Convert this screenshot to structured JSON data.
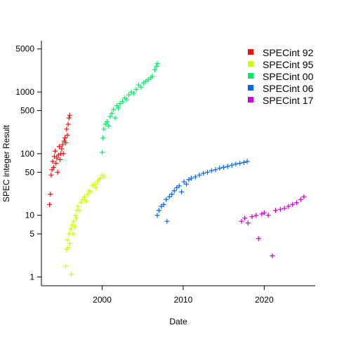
{
  "chart_data": {
    "type": "scatter",
    "title": "",
    "xlabel": "Date",
    "ylabel": "SPEC integer Result",
    "y_scale": "log",
    "xlim": [
      1992.5,
      2026.3
    ],
    "ylim": [
      0.72,
      6800
    ],
    "x_ticks": [
      2000,
      2010,
      2020
    ],
    "x_tick_labels": [
      "2000",
      "2010",
      "2020"
    ],
    "y_ticks": [
      1,
      5,
      10,
      50,
      100,
      500,
      1000,
      5000
    ],
    "y_tick_labels": [
      "1",
      "5",
      "10",
      "50",
      "100",
      "500",
      "1000",
      "5000"
    ],
    "marker": "+",
    "legend_position": "top-right",
    "series": [
      {
        "name": "SPECint 92",
        "color": "#ee1111",
        "points": [
          [
            1993.5,
            15
          ],
          [
            1993.6,
            22
          ],
          [
            1993.7,
            45
          ],
          [
            1993.8,
            55
          ],
          [
            1993.9,
            75
          ],
          [
            1994.0,
            60
          ],
          [
            1994.1,
            90
          ],
          [
            1994.2,
            110
          ],
          [
            1994.3,
            70
          ],
          [
            1994.4,
            85
          ],
          [
            1994.5,
            50
          ],
          [
            1994.6,
            95
          ],
          [
            1994.7,
            130
          ],
          [
            1994.8,
            80
          ],
          [
            1994.9,
            100
          ],
          [
            1995.0,
            120
          ],
          [
            1995.1,
            140
          ],
          [
            1995.2,
            100
          ],
          [
            1995.3,
            160
          ],
          [
            1995.4,
            180
          ],
          [
            1995.5,
            150
          ],
          [
            1995.6,
            250
          ],
          [
            1995.7,
            200
          ],
          [
            1995.8,
            300
          ],
          [
            1995.9,
            380
          ],
          [
            1996.0,
            420
          ]
        ]
      },
      {
        "name": "SPECint 95",
        "color": "#ccff00",
        "points": [
          [
            1995.5,
            1.5
          ],
          [
            1995.6,
            2.8
          ],
          [
            1995.7,
            4
          ],
          [
            1995.8,
            3
          ],
          [
            1995.9,
            5
          ],
          [
            1996.0,
            3.5
          ],
          [
            1996.1,
            6
          ],
          [
            1996.2,
            1.1
          ],
          [
            1996.3,
            7
          ],
          [
            1996.4,
            5
          ],
          [
            1996.5,
            8
          ],
          [
            1996.6,
            6.5
          ],
          [
            1996.7,
            10
          ],
          [
            1996.8,
            9
          ],
          [
            1996.9,
            12
          ],
          [
            1997.0,
            14
          ],
          [
            1997.2,
            12
          ],
          [
            1997.4,
            16
          ],
          [
            1997.6,
            18
          ],
          [
            1997.8,
            20
          ],
          [
            1998.0,
            17
          ],
          [
            1998.2,
            22
          ],
          [
            1998.4,
            25
          ],
          [
            1998.6,
            24
          ],
          [
            1998.8,
            30
          ],
          [
            1999.0,
            32
          ],
          [
            1999.2,
            28
          ],
          [
            1999.4,
            35
          ],
          [
            1999.6,
            38
          ],
          [
            1999.8,
            40
          ],
          [
            2000.0,
            45
          ],
          [
            2000.2,
            42
          ]
        ]
      },
      {
        "name": "SPECint 00",
        "color": "#00ee66",
        "points": [
          [
            2000.0,
            105
          ],
          [
            2000.1,
            180
          ],
          [
            2000.2,
            250
          ],
          [
            2000.4,
            300
          ],
          [
            2000.6,
            330
          ],
          [
            2000.8,
            280
          ],
          [
            2001.0,
            400
          ],
          [
            2001.2,
            450
          ],
          [
            2001.4,
            520
          ],
          [
            2001.6,
            380
          ],
          [
            2001.8,
            600
          ],
          [
            2002.0,
            550
          ],
          [
            2002.2,
            650
          ],
          [
            2002.5,
            700
          ],
          [
            2002.8,
            800
          ],
          [
            2003.0,
            750
          ],
          [
            2003.3,
            900
          ],
          [
            2003.6,
            1000
          ],
          [
            2003.9,
            950
          ],
          [
            2004.2,
            1100
          ],
          [
            2004.5,
            1300
          ],
          [
            2004.8,
            1200
          ],
          [
            2005.1,
            1400
          ],
          [
            2005.4,
            1500
          ],
          [
            2005.7,
            1600
          ],
          [
            2006.0,
            1700
          ],
          [
            2006.2,
            1800
          ],
          [
            2006.5,
            2300
          ],
          [
            2006.7,
            2600
          ],
          [
            2006.8,
            2900
          ]
        ]
      },
      {
        "name": "SPECint 06",
        "color": "#0066ee",
        "points": [
          [
            2006.8,
            10
          ],
          [
            2007.0,
            12
          ],
          [
            2007.3,
            14
          ],
          [
            2007.6,
            15
          ],
          [
            2007.9,
            18
          ],
          [
            2008.0,
            8
          ],
          [
            2008.3,
            20
          ],
          [
            2008.6,
            22
          ],
          [
            2008.9,
            25
          ],
          [
            2009.2,
            28
          ],
          [
            2009.5,
            30
          ],
          [
            2009.8,
            24
          ],
          [
            2010.1,
            35
          ],
          [
            2010.4,
            32
          ],
          [
            2010.7,
            38
          ],
          [
            2011.0,
            40
          ],
          [
            2011.5,
            42
          ],
          [
            2012.0,
            45
          ],
          [
            2012.5,
            48
          ],
          [
            2013.0,
            50
          ],
          [
            2013.5,
            53
          ],
          [
            2014.0,
            55
          ],
          [
            2014.5,
            58
          ],
          [
            2015.0,
            60
          ],
          [
            2015.5,
            62
          ],
          [
            2016.0,
            65
          ],
          [
            2016.5,
            68
          ],
          [
            2017.0,
            70
          ],
          [
            2017.5,
            72
          ],
          [
            2017.9,
            75
          ]
        ]
      },
      {
        "name": "SPECint 17",
        "color": "#cc00cc",
        "points": [
          [
            2017.2,
            8
          ],
          [
            2017.6,
            9
          ],
          [
            2018.0,
            7.5
          ],
          [
            2018.5,
            9.5
          ],
          [
            2019.0,
            10
          ],
          [
            2019.3,
            4.2
          ],
          [
            2019.7,
            10.5
          ],
          [
            2020.0,
            11
          ],
          [
            2020.5,
            10
          ],
          [
            2021.0,
            2.2
          ],
          [
            2021.4,
            12
          ],
          [
            2022.0,
            12.5
          ],
          [
            2022.5,
            13
          ],
          [
            2023.0,
            14
          ],
          [
            2023.5,
            15
          ],
          [
            2024.0,
            16
          ],
          [
            2024.5,
            18
          ],
          [
            2024.9,
            20
          ]
        ]
      }
    ]
  }
}
